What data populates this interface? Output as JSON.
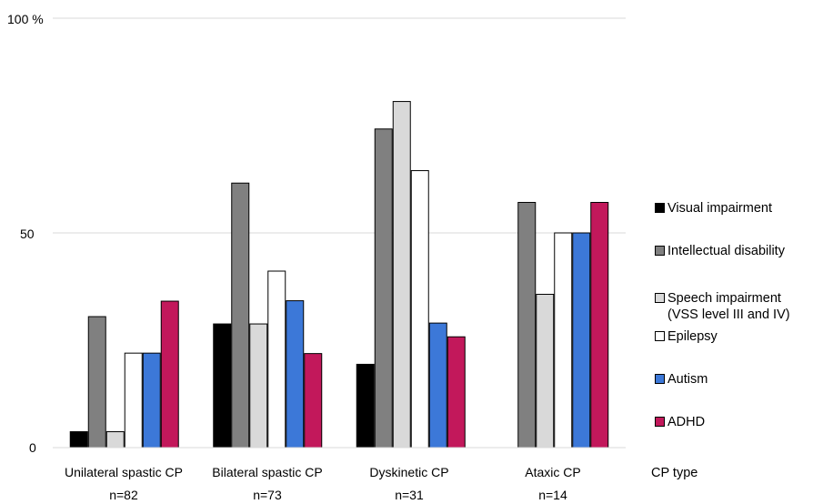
{
  "chart_data": {
    "type": "bar",
    "title": "",
    "xlabel": "CP type",
    "ylabel": "",
    "ylim": [
      0,
      100
    ],
    "yticks": [
      "0",
      "50",
      "100 %"
    ],
    "grid": "horizontal",
    "legend_position": "right",
    "categories": [
      {
        "name": "Unilateral spastic CP",
        "n": "n=82"
      },
      {
        "name": "Bilateral spastic CP",
        "n": "n=73"
      },
      {
        "name": "Dyskinetic CP",
        "n": "n=31"
      },
      {
        "name": "Ataxic CP",
        "n": "n=14"
      }
    ],
    "series": [
      {
        "name": "Visual impairment",
        "color": "#000000",
        "values": [
          3.7,
          28.8,
          19.4,
          0
        ]
      },
      {
        "name": "Intellectual disability",
        "color": "#808080",
        "values": [
          30.5,
          61.6,
          74.2,
          57.1
        ]
      },
      {
        "name": "Speech impairment\n(VSS level III and IV)",
        "color": "#d9d9d9",
        "values": [
          3.7,
          28.8,
          80.6,
          35.7
        ]
      },
      {
        "name": "Epilepsy",
        "color": "#ffffff",
        "values": [
          22.0,
          41.1,
          64.5,
          50.0
        ]
      },
      {
        "name": "Autism",
        "color": "#3c78d8",
        "values": [
          22.0,
          34.2,
          29.0,
          50.0
        ]
      },
      {
        "name": "ADHD",
        "color": "#c2185b",
        "values": [
          34.1,
          21.9,
          25.8,
          57.1
        ]
      }
    ]
  }
}
